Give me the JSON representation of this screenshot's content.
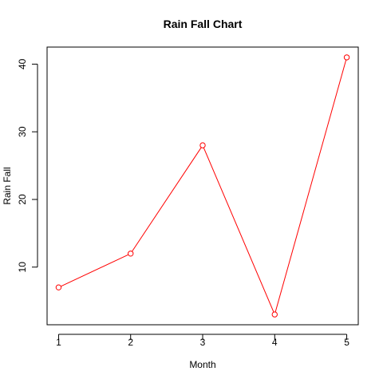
{
  "chart_data": {
    "type": "line",
    "title": "Rain Fall Chart",
    "xlabel": "Month",
    "ylabel": "Rain Fall",
    "x": [
      1,
      2,
      3,
      4,
      5
    ],
    "series": [
      {
        "values": [
          7,
          12,
          28,
          3,
          41
        ],
        "color": "#ff0000",
        "marker": "open-circle"
      }
    ],
    "x_ticks": [
      "1",
      "2",
      "3",
      "4",
      "5"
    ],
    "y_ticks": [
      "10",
      "20",
      "30",
      "40"
    ],
    "xlim": [
      1,
      5
    ],
    "ylim": [
      3,
      41
    ],
    "grid": false
  }
}
